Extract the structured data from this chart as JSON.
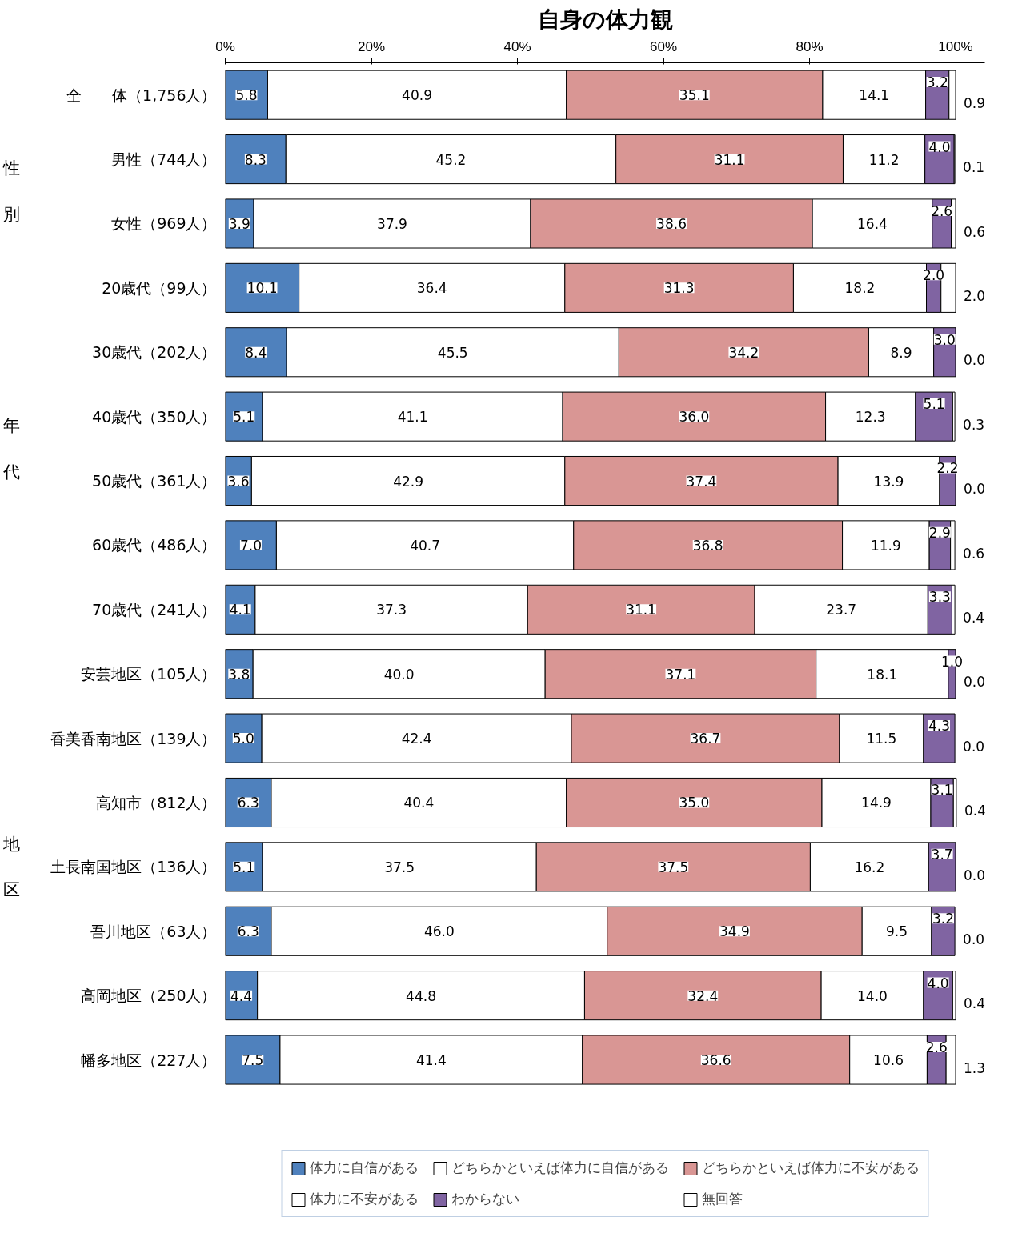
{
  "chart_data": {
    "type": "bar",
    "orientation": "horizontal",
    "stacked": true,
    "title": "自身の体力観",
    "categories": [
      "全　　体（1,756人）",
      "男性（744人）",
      "女性（969人）",
      "20歳代（99人）",
      "30歳代（202人）",
      "40歳代（350人）",
      "50歳代（361人）",
      "60歳代（486人）",
      "70歳代（241人）",
      "安芸地区（105人）",
      "香美香南地区（139人）",
      "高知市（812人）",
      "土長南国地区（136人）",
      "吾川地区（63人）",
      "高岡地区（250人）",
      "幡多地区（227人）"
    ],
    "series": [
      {
        "name": "体力に自信がある",
        "color": "#4f81bd",
        "values": [
          5.8,
          8.3,
          3.9,
          10.1,
          8.4,
          5.1,
          3.6,
          7.0,
          4.1,
          3.8,
          5.0,
          6.3,
          5.1,
          6.3,
          4.4,
          7.5
        ],
        "value_labels": [
          "5.8",
          "8.3",
          "3.9",
          "10.1",
          "8.4",
          "5.1",
          "3.6",
          "7.0",
          "4.1",
          "3.8",
          "5.0",
          "6.3",
          "5.1",
          "6.3",
          "4.4",
          "7.5"
        ]
      },
      {
        "name": "どちらかといえば体力に自信がある",
        "color": "#ffffff",
        "values": [
          40.9,
          45.2,
          37.9,
          36.4,
          45.5,
          41.1,
          42.9,
          40.7,
          37.3,
          40.0,
          42.4,
          40.4,
          37.5,
          46.0,
          44.8,
          41.4
        ],
        "value_labels": [
          "40.9",
          "45.2",
          "37.9",
          "36.4",
          "45.5",
          "41.1",
          "42.9",
          "40.7",
          "37.3",
          "40.0",
          "42.4",
          "40.4",
          "37.5",
          "46.0",
          "44.8",
          "41.4"
        ]
      },
      {
        "name": "どちらかといえば体力に不安がある",
        "color": "#d99694",
        "values": [
          35.1,
          31.1,
          38.6,
          31.3,
          34.2,
          36.0,
          37.4,
          36.8,
          31.1,
          37.1,
          36.7,
          35.0,
          37.5,
          34.9,
          32.4,
          36.6
        ],
        "value_labels": [
          "35.1",
          "31.1",
          "38.6",
          "31.3",
          "34.2",
          "36.0",
          "37.4",
          "36.8",
          "31.1",
          "37.1",
          "36.7",
          "35.0",
          "37.5",
          "34.9",
          "32.4",
          "36.6"
        ]
      },
      {
        "name": "体力に不安がある",
        "color": "#ffffff",
        "values": [
          14.1,
          11.2,
          16.4,
          18.2,
          8.9,
          12.3,
          13.9,
          11.9,
          23.7,
          18.1,
          11.5,
          14.9,
          16.2,
          9.5,
          14.0,
          10.6
        ],
        "value_labels": [
          "14.1",
          "11.2",
          "16.4",
          "18.2",
          "8.9",
          "12.3",
          "13.9",
          "11.9",
          "23.7",
          "18.1",
          "11.5",
          "14.9",
          "16.2",
          "9.5",
          "14.0",
          "10.6"
        ]
      },
      {
        "name": "わからない",
        "color": "#8064a2",
        "values": [
          3.2,
          4.0,
          2.6,
          2.0,
          3.0,
          5.1,
          2.2,
          2.9,
          3.3,
          1.0,
          4.3,
          3.1,
          3.7,
          3.2,
          4.0,
          2.6
        ],
        "value_labels": [
          "3.2",
          "4.0",
          "2.6",
          "2.0",
          "3.0",
          "5.1",
          "2.2",
          "2.9",
          "3.3",
          "1.0",
          "4.3",
          "3.1",
          "3.7",
          "3.2",
          "4.0",
          "2.6"
        ]
      },
      {
        "name": "無回答",
        "color": "#ffffff",
        "values": [
          0.9,
          0.1,
          0.6,
          2.0,
          0.0,
          0.3,
          0.0,
          0.6,
          0.4,
          0.0,
          0.0,
          0.4,
          0.0,
          0.0,
          0.4,
          1.3
        ],
        "value_labels": [
          "0.9",
          "0.1",
          "0.6",
          "2.0",
          "0.0",
          "0.3",
          "0.0",
          "0.6",
          "0.4",
          "0.0",
          "0.0",
          "0.4",
          "0.0",
          "0.0",
          "0.4",
          "1.3"
        ]
      }
    ],
    "xlim": [
      0,
      104
    ],
    "xticks": [
      {
        "value": 0,
        "label": "0%"
      },
      {
        "value": 20,
        "label": "20%"
      },
      {
        "value": 40,
        "label": "40%"
      },
      {
        "value": 60,
        "label": "60%"
      },
      {
        "value": 80,
        "label": "80%"
      },
      {
        "value": 100,
        "label": "100%"
      }
    ],
    "annotations": [
      "性別",
      "年代",
      "地区"
    ],
    "grid": false,
    "legend": "bottom"
  }
}
